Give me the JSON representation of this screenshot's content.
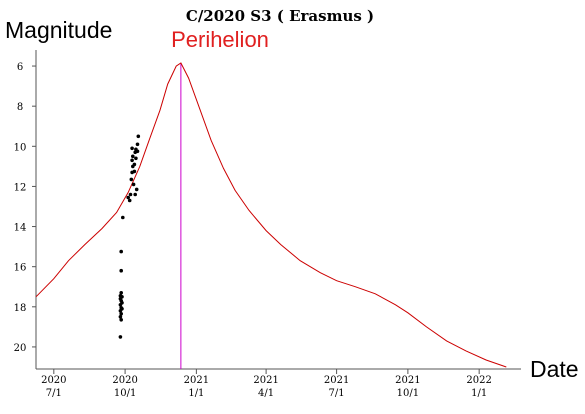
{
  "chart_data": {
    "type": "line",
    "title": "C/2020 S3 ( Erasmus )",
    "ylabel": "Magnitude",
    "xlabel": "Date",
    "y_inverted": true,
    "ylim": [
      21.1,
      5.2
    ],
    "xlim": [
      "2020-06-08",
      "2022-02-24"
    ],
    "y_ticks": [
      6,
      8,
      10,
      12,
      14,
      16,
      18,
      20
    ],
    "x_ticks": [
      {
        "date": "2020-07-01",
        "year": "2020",
        "md": "7/1"
      },
      {
        "date": "2020-10-01",
        "year": "2020",
        "md": "10/1"
      },
      {
        "date": "2021-01-01",
        "year": "2021",
        "md": "1/1"
      },
      {
        "date": "2021-04-01",
        "year": "2021",
        "md": "4/1"
      },
      {
        "date": "2021-07-01",
        "year": "2021",
        "md": "7/1"
      },
      {
        "date": "2021-10-01",
        "year": "2021",
        "md": "10/1"
      },
      {
        "date": "2022-01-01",
        "year": "2022",
        "md": "1/1"
      }
    ],
    "perihelion": {
      "label": "Perihelion",
      "date": "2020-12-12",
      "color": "#cc00cc",
      "label_color": "#e02020"
    },
    "curve": {
      "color": "#cc0000",
      "points": [
        [
          "2020-06-08",
          17.5
        ],
        [
          "2020-07-01",
          16.6
        ],
        [
          "2020-07-20",
          15.7
        ],
        [
          "2020-08-10",
          14.9
        ],
        [
          "2020-09-01",
          14.1
        ],
        [
          "2020-09-20",
          13.3
        ],
        [
          "2020-10-05",
          12.3
        ],
        [
          "2020-10-20",
          11.0
        ],
        [
          "2020-11-01",
          9.7
        ],
        [
          "2020-11-15",
          8.2
        ],
        [
          "2020-11-25",
          6.9
        ],
        [
          "2020-12-06",
          6.0
        ],
        [
          "2020-12-12",
          5.85
        ],
        [
          "2020-12-22",
          6.6
        ],
        [
          "2021-01-05",
          8.1
        ],
        [
          "2021-01-20",
          9.7
        ],
        [
          "2021-02-05",
          11.1
        ],
        [
          "2021-02-20",
          12.2
        ],
        [
          "2021-03-10",
          13.2
        ],
        [
          "2021-04-01",
          14.2
        ],
        [
          "2021-04-20",
          14.9
        ],
        [
          "2021-05-15",
          15.7
        ],
        [
          "2021-06-10",
          16.3
        ],
        [
          "2021-07-01",
          16.7
        ],
        [
          "2021-07-25",
          17.0
        ],
        [
          "2021-08-20",
          17.35
        ],
        [
          "2021-09-15",
          17.9
        ],
        [
          "2021-10-01",
          18.3
        ],
        [
          "2021-10-25",
          19.0
        ],
        [
          "2021-11-20",
          19.7
        ],
        [
          "2021-12-15",
          20.2
        ],
        [
          "2022-01-10",
          20.65
        ],
        [
          "2022-02-05",
          21.0
        ]
      ]
    },
    "observations": {
      "color": "#000000",
      "points": [
        [
          "2020-09-26",
          15.25
        ],
        [
          "2020-09-26",
          16.2
        ],
        [
          "2020-09-26",
          17.3
        ],
        [
          "2020-09-25",
          17.45
        ],
        [
          "2020-09-25",
          17.6
        ],
        [
          "2020-09-26",
          17.7
        ],
        [
          "2020-09-25",
          17.9
        ],
        [
          "2020-09-26",
          18.05
        ],
        [
          "2020-09-25",
          18.2
        ],
        [
          "2020-09-26",
          18.35
        ],
        [
          "2020-09-25",
          18.5
        ],
        [
          "2020-09-26",
          18.65
        ],
        [
          "2020-09-27",
          17.5
        ],
        [
          "2020-09-27",
          17.8
        ],
        [
          "2020-09-27",
          18.1
        ],
        [
          "2020-09-25",
          19.5
        ],
        [
          "2020-09-28",
          13.55
        ],
        [
          "2020-10-05",
          12.55
        ],
        [
          "2020-10-07",
          12.7
        ],
        [
          "2020-10-08",
          12.4
        ],
        [
          "2020-10-09",
          11.65
        ],
        [
          "2020-10-10",
          11.3
        ],
        [
          "2020-10-10",
          10.7
        ],
        [
          "2020-10-10",
          10.1
        ],
        [
          "2020-10-11",
          10.5
        ],
        [
          "2020-10-11",
          11.0
        ],
        [
          "2020-10-12",
          11.9
        ],
        [
          "2020-10-13",
          11.25
        ],
        [
          "2020-10-13",
          10.9
        ],
        [
          "2020-10-14",
          10.3
        ],
        [
          "2020-10-14",
          12.4
        ],
        [
          "2020-10-15",
          10.15
        ],
        [
          "2020-10-15",
          10.6
        ],
        [
          "2020-10-16",
          12.15
        ],
        [
          "2020-10-17",
          9.9
        ],
        [
          "2020-10-17",
          10.25
        ],
        [
          "2020-10-18",
          9.5
        ]
      ]
    }
  }
}
